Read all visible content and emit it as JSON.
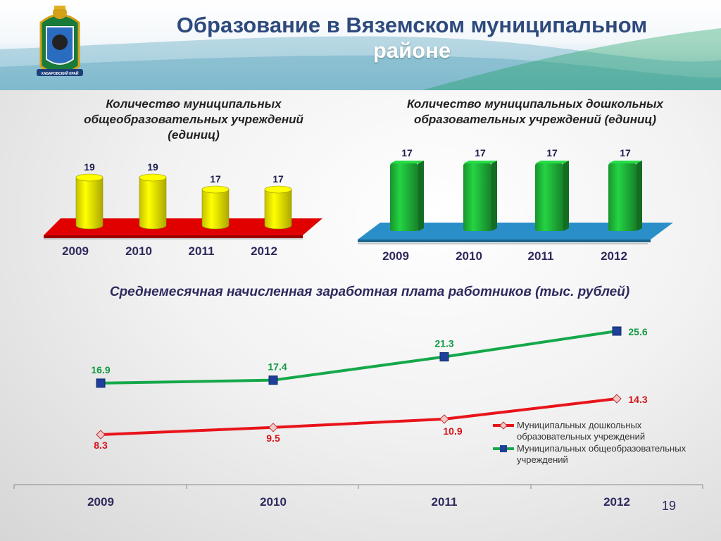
{
  "header": {
    "title_line1": "Образование в Вяземском муниципальном",
    "title_line2": "районе"
  },
  "emblem": {
    "ribbon_text": "ХАБАРОВСКИЙ КРАЙ"
  },
  "page_number": "19",
  "chart_data": [
    {
      "type": "bar",
      "title_lines": [
        "Количество муниципальных",
        "общеобразовательных учреждений",
        "(единиц)"
      ],
      "categories": [
        "2009",
        "2010",
        "2011",
        "2012"
      ],
      "values": [
        19,
        19,
        17,
        17
      ],
      "bar_color": "#f5f000",
      "floor_color": "#e00000"
    },
    {
      "type": "bar",
      "title_lines": [
        "Количество муниципальных дошкольных",
        "образовательных учреждений (единиц)"
      ],
      "categories": [
        "2009",
        "2010",
        "2011",
        "2012"
      ],
      "values": [
        17,
        17,
        17,
        17
      ],
      "bar_color": "#1fb83a",
      "floor_color": "#2a8fc9"
    },
    {
      "type": "line",
      "title": "Среднемесячная начисленная заработная плата работников (тыс. рублей)",
      "categories": [
        "2009",
        "2010",
        "2011",
        "2012"
      ],
      "series": [
        {
          "name": "Муниципальных дошкольных образовательных учреждений",
          "legend_lines": [
            "Муниципальных дошкольных",
            "образовательных учреждений"
          ],
          "values": [
            8.3,
            9.5,
            10.9,
            14.3
          ],
          "color": "#e8141a",
          "label_color": "#d4141a",
          "marker": "diamond"
        },
        {
          "name": "Муниципальных общеобразовательных учреждений",
          "legend_lines": [
            "Муниципальных общеобразовательных",
            "учреждений"
          ],
          "values": [
            16.9,
            17.4,
            21.3,
            25.6
          ],
          "color": "#15a84a",
          "label_color": "#139a42",
          "marker": "square"
        }
      ],
      "legend_position": "right"
    }
  ]
}
